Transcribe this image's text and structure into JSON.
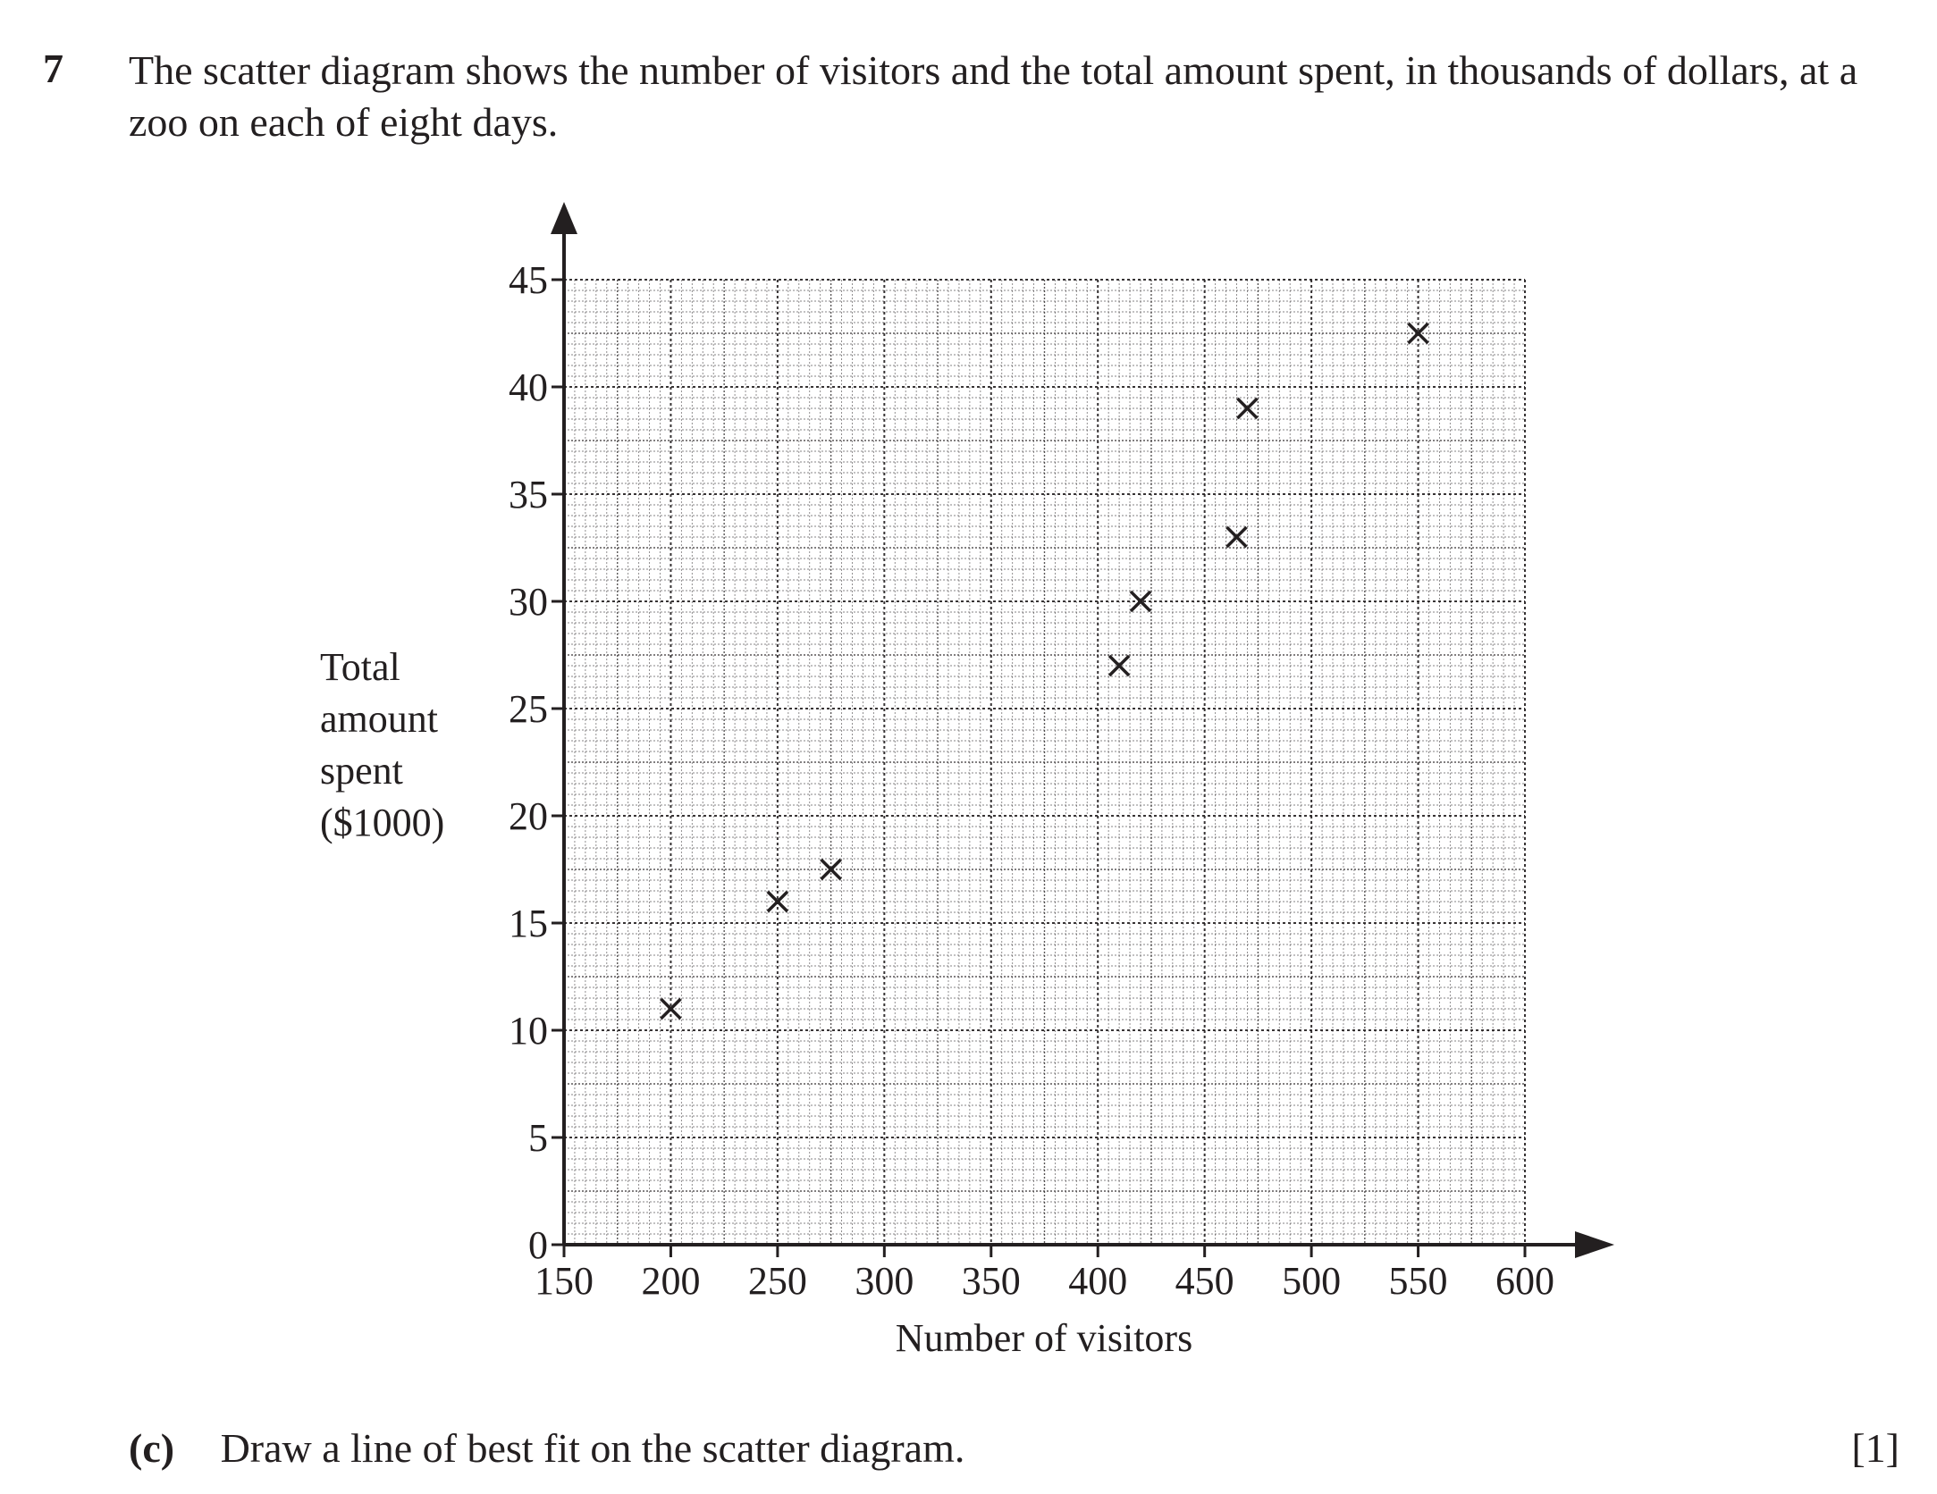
{
  "question": {
    "number": "7",
    "text": "The scatter diagram shows the number of visitors and the total amount spent, in thousands of dollars, at a zoo on each of eight days."
  },
  "chart_data": {
    "type": "scatter",
    "xlabel": "Number of visitors",
    "ylabel_lines": [
      "Total",
      "amount",
      "spent",
      "($1000)"
    ],
    "xlim": [
      150,
      600
    ],
    "ylim": [
      0,
      45
    ],
    "x_ticks": [
      150,
      200,
      250,
      300,
      350,
      400,
      450,
      500,
      550,
      600
    ],
    "y_ticks": [
      0,
      5,
      10,
      15,
      20,
      25,
      30,
      35,
      40,
      45
    ],
    "grid": true,
    "marker": "cross",
    "points": [
      {
        "x": 200,
        "y": 11
      },
      {
        "x": 250,
        "y": 16
      },
      {
        "x": 275,
        "y": 17.5
      },
      {
        "x": 410,
        "y": 27
      },
      {
        "x": 420,
        "y": 30
      },
      {
        "x": 465,
        "y": 33
      },
      {
        "x": 470,
        "y": 39
      },
      {
        "x": 550,
        "y": 42.5
      }
    ]
  },
  "part_c": {
    "label": "(c)",
    "text": "Draw a line of best fit on the scatter diagram.",
    "marks": "[1]"
  }
}
